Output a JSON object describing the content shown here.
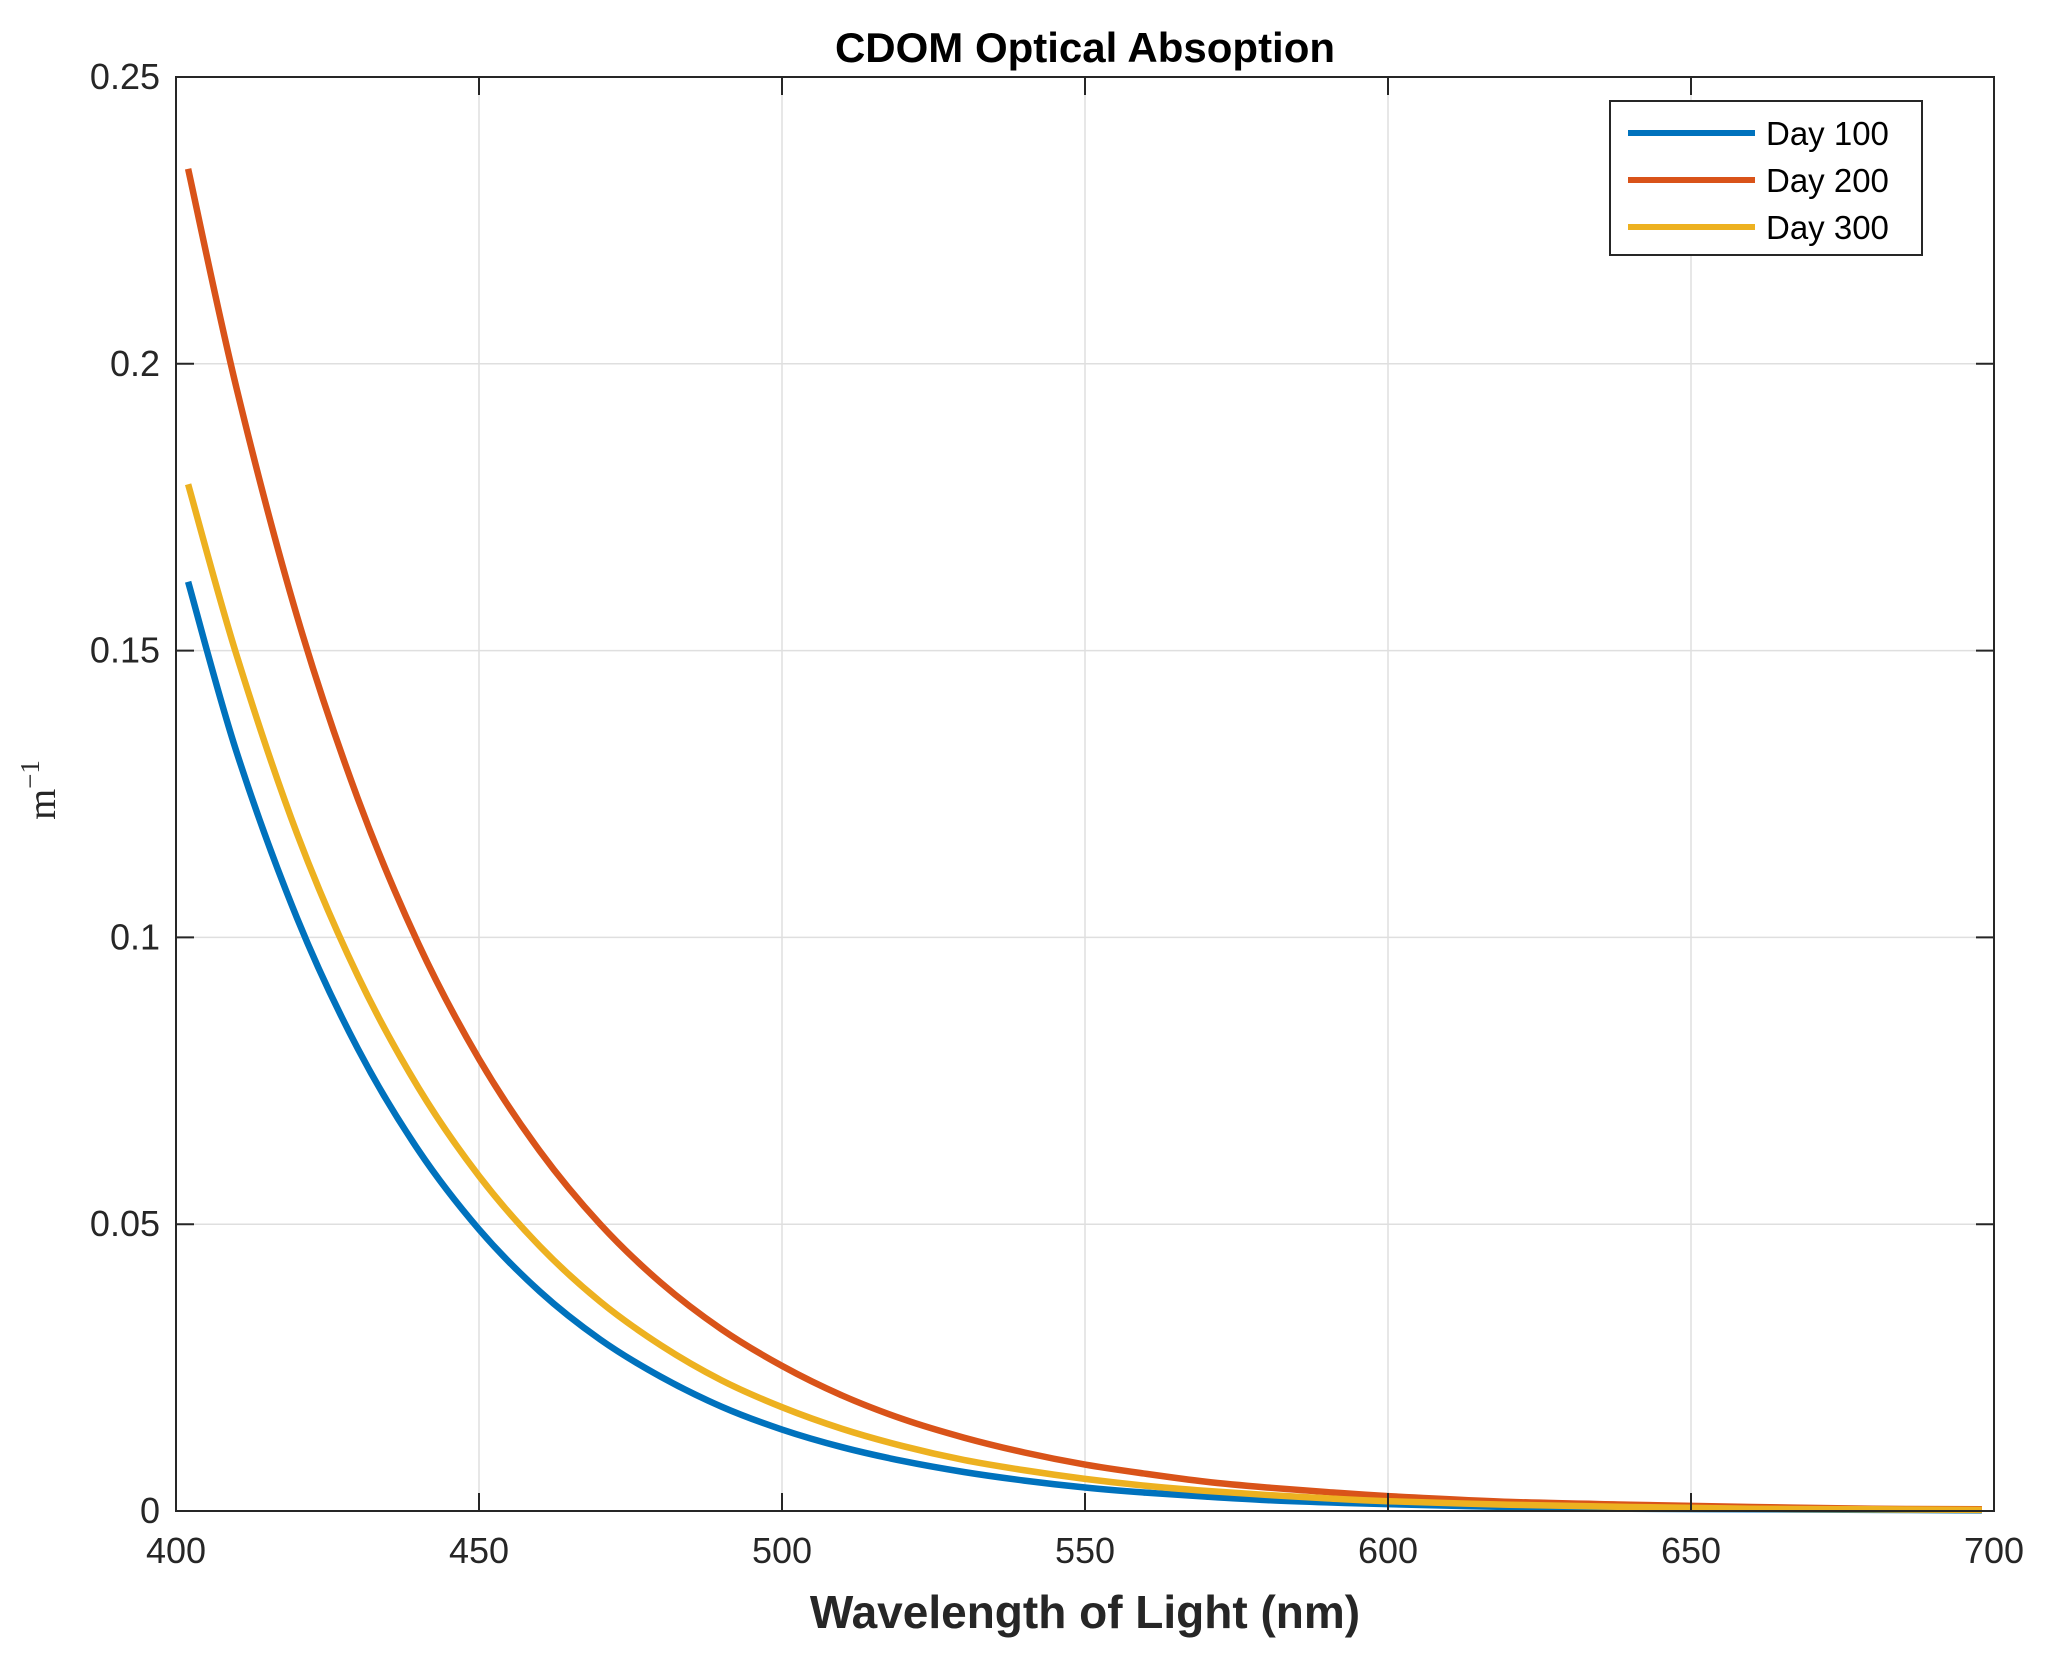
{
  "chart_data": {
    "type": "line",
    "title": "CDOM Optical Absoption",
    "xlabel": "Wavelength of Light (nm)",
    "ylabel": "m",
    "ylabel_superscript": "−1",
    "xlim": [
      400,
      700
    ],
    "ylim": [
      0,
      0.25
    ],
    "xticks": [
      400,
      450,
      500,
      550,
      600,
      650,
      700
    ],
    "xtick_labels": [
      "400",
      "450",
      "500",
      "550",
      "600",
      "650",
      "700"
    ],
    "yticks": [
      0,
      0.05,
      0.1,
      0.15,
      0.2,
      0.25
    ],
    "ytick_labels": [
      "0",
      "0.05",
      "0.1",
      "0.15",
      "0.2",
      "0.25"
    ],
    "grid": true,
    "legend_position": "top-right",
    "x": [
      402,
      410,
      420,
      430,
      440,
      450,
      460,
      470,
      480,
      490,
      500,
      510,
      520,
      530,
      540,
      550,
      560,
      570,
      580,
      590,
      600,
      620,
      640,
      660,
      680,
      698
    ],
    "series": [
      {
        "name": "Day 100",
        "color": "#0072BD",
        "values": [
          0.162,
          0.1323,
          0.1033,
          0.0806,
          0.0629,
          0.0491,
          0.0383,
          0.0299,
          0.0234,
          0.0182,
          0.0142,
          0.0111,
          0.0087,
          0.0068,
          0.0053,
          0.0041,
          0.0032,
          0.0025,
          0.0019,
          0.0015,
          0.0012,
          0.0007,
          0.0004,
          0.0003,
          0.0002,
          0.0001
        ]
      },
      {
        "name": "Day 200",
        "color": "#D95319",
        "values": [
          0.234,
          0.1957,
          0.1559,
          0.1242,
          0.0989,
          0.0788,
          0.0628,
          0.05,
          0.0398,
          0.0317,
          0.0253,
          0.0201,
          0.016,
          0.0128,
          0.0102,
          0.0081,
          0.0065,
          0.0051,
          0.0041,
          0.0033,
          0.0026,
          0.0016,
          0.0011,
          0.0007,
          0.0004,
          0.0003
        ]
      },
      {
        "name": "Day 300",
        "color": "#EDB120",
        "values": [
          0.179,
          0.1492,
          0.118,
          0.0933,
          0.0738,
          0.0584,
          0.0462,
          0.0365,
          0.0289,
          0.0228,
          0.0181,
          0.0143,
          0.0113,
          0.0089,
          0.0071,
          0.0056,
          0.0044,
          0.0035,
          0.0028,
          0.0022,
          0.0017,
          0.0011,
          0.0007,
          0.0004,
          0.0003,
          0.0002
        ]
      }
    ]
  }
}
